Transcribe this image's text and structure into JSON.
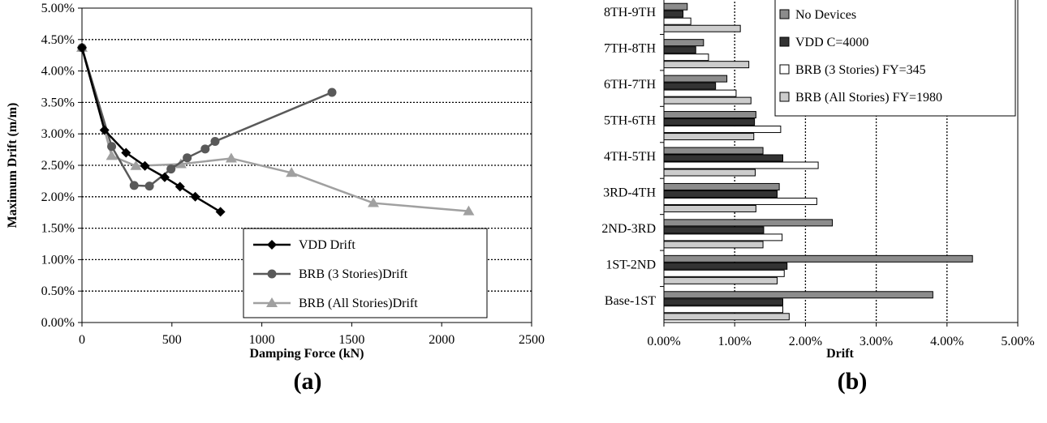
{
  "chart_data": [
    {
      "type": "line",
      "panel_label": "(a)",
      "xlabel": "Damping Force (kN)",
      "ylabel": "Maximum Drift (m/m)",
      "xlim": [
        0,
        2500
      ],
      "ylim": [
        0,
        0.05
      ],
      "xticks": [
        "0",
        "500",
        "1000",
        "1500",
        "2000",
        "2500"
      ],
      "yticks": [
        "0.00%",
        "0.50%",
        "1.00%",
        "1.50%",
        "2.00%",
        "2.50%",
        "3.00%",
        "3.50%",
        "4.00%",
        "4.50%",
        "5.00%"
      ],
      "grid": "horizontal dotted",
      "legend_position": "bottom-right",
      "series": [
        {
          "name": "VDD Drift",
          "marker": "diamond",
          "color": "#000000",
          "points": [
            [
              0,
              0.0437
            ],
            [
              125,
              0.0306
            ],
            [
              245,
              0.027
            ],
            [
              350,
              0.0249
            ],
            [
              460,
              0.0231
            ],
            [
              545,
              0.0216
            ],
            [
              630,
              0.02
            ],
            [
              770,
              0.0176
            ]
          ]
        },
        {
          "name": "BRB (3 Stories)Drift",
          "marker": "circle",
          "color": "#595959",
          "points": [
            [
              0,
              0.0437
            ],
            [
              165,
              0.028
            ],
            [
              290,
              0.0218
            ],
            [
              375,
              0.0217
            ],
            [
              495,
              0.0244
            ],
            [
              585,
              0.0262
            ],
            [
              685,
              0.0276
            ],
            [
              740,
              0.0288
            ],
            [
              1390,
              0.0366
            ]
          ]
        },
        {
          "name": "BRB (All Stories)Drift",
          "marker": "triangle",
          "color": "#a0a0a0",
          "points": [
            [
              0,
              0.0437
            ],
            [
              165,
              0.0265
            ],
            [
              300,
              0.0249
            ],
            [
              550,
              0.0252
            ],
            [
              830,
              0.0261
            ],
            [
              1165,
              0.0238
            ],
            [
              1620,
              0.019
            ],
            [
              2150,
              0.0177
            ]
          ]
        }
      ]
    },
    {
      "type": "bar",
      "orientation": "horizontal",
      "panel_label": "(b)",
      "xlabel": "Drift",
      "xlim": [
        0,
        0.05
      ],
      "xticks": [
        "0.00%",
        "1.00%",
        "2.00%",
        "3.00%",
        "4.00%",
        "5.00%"
      ],
      "grid": "vertical dotted",
      "legend_position": "top-right",
      "categories": [
        "8TH-9TH",
        "7TH-8TH",
        "6TH-7TH",
        "5TH-6TH",
        "4TH-5TH",
        "3RD-4TH",
        "2ND-3RD",
        "1ST-2ND",
        "Base-1ST"
      ],
      "series": [
        {
          "name": "No Devices",
          "color": "#8c8c8c",
          "values": [
            0.0033,
            0.0056,
            0.0089,
            0.013,
            0.014,
            0.0163,
            0.0238,
            0.0436,
            0.038
          ]
        },
        {
          "name": "VDD C=4000",
          "color": "#333333",
          "values": [
            0.0027,
            0.0045,
            0.0073,
            0.0128,
            0.0168,
            0.016,
            0.0141,
            0.0174,
            0.0168
          ]
        },
        {
          "name": "BRB (3 Stories) FY=345",
          "color": "#ffffff",
          "values": [
            0.0038,
            0.0063,
            0.0102,
            0.0165,
            0.0218,
            0.0216,
            0.0167,
            0.017,
            0.0168
          ]
        },
        {
          "name": "BRB (All Stories) FY=1980",
          "color": "#cccccc",
          "values": [
            0.0108,
            0.012,
            0.0123,
            0.0127,
            0.0129,
            0.013,
            0.014,
            0.016,
            0.0177
          ]
        }
      ]
    }
  ]
}
